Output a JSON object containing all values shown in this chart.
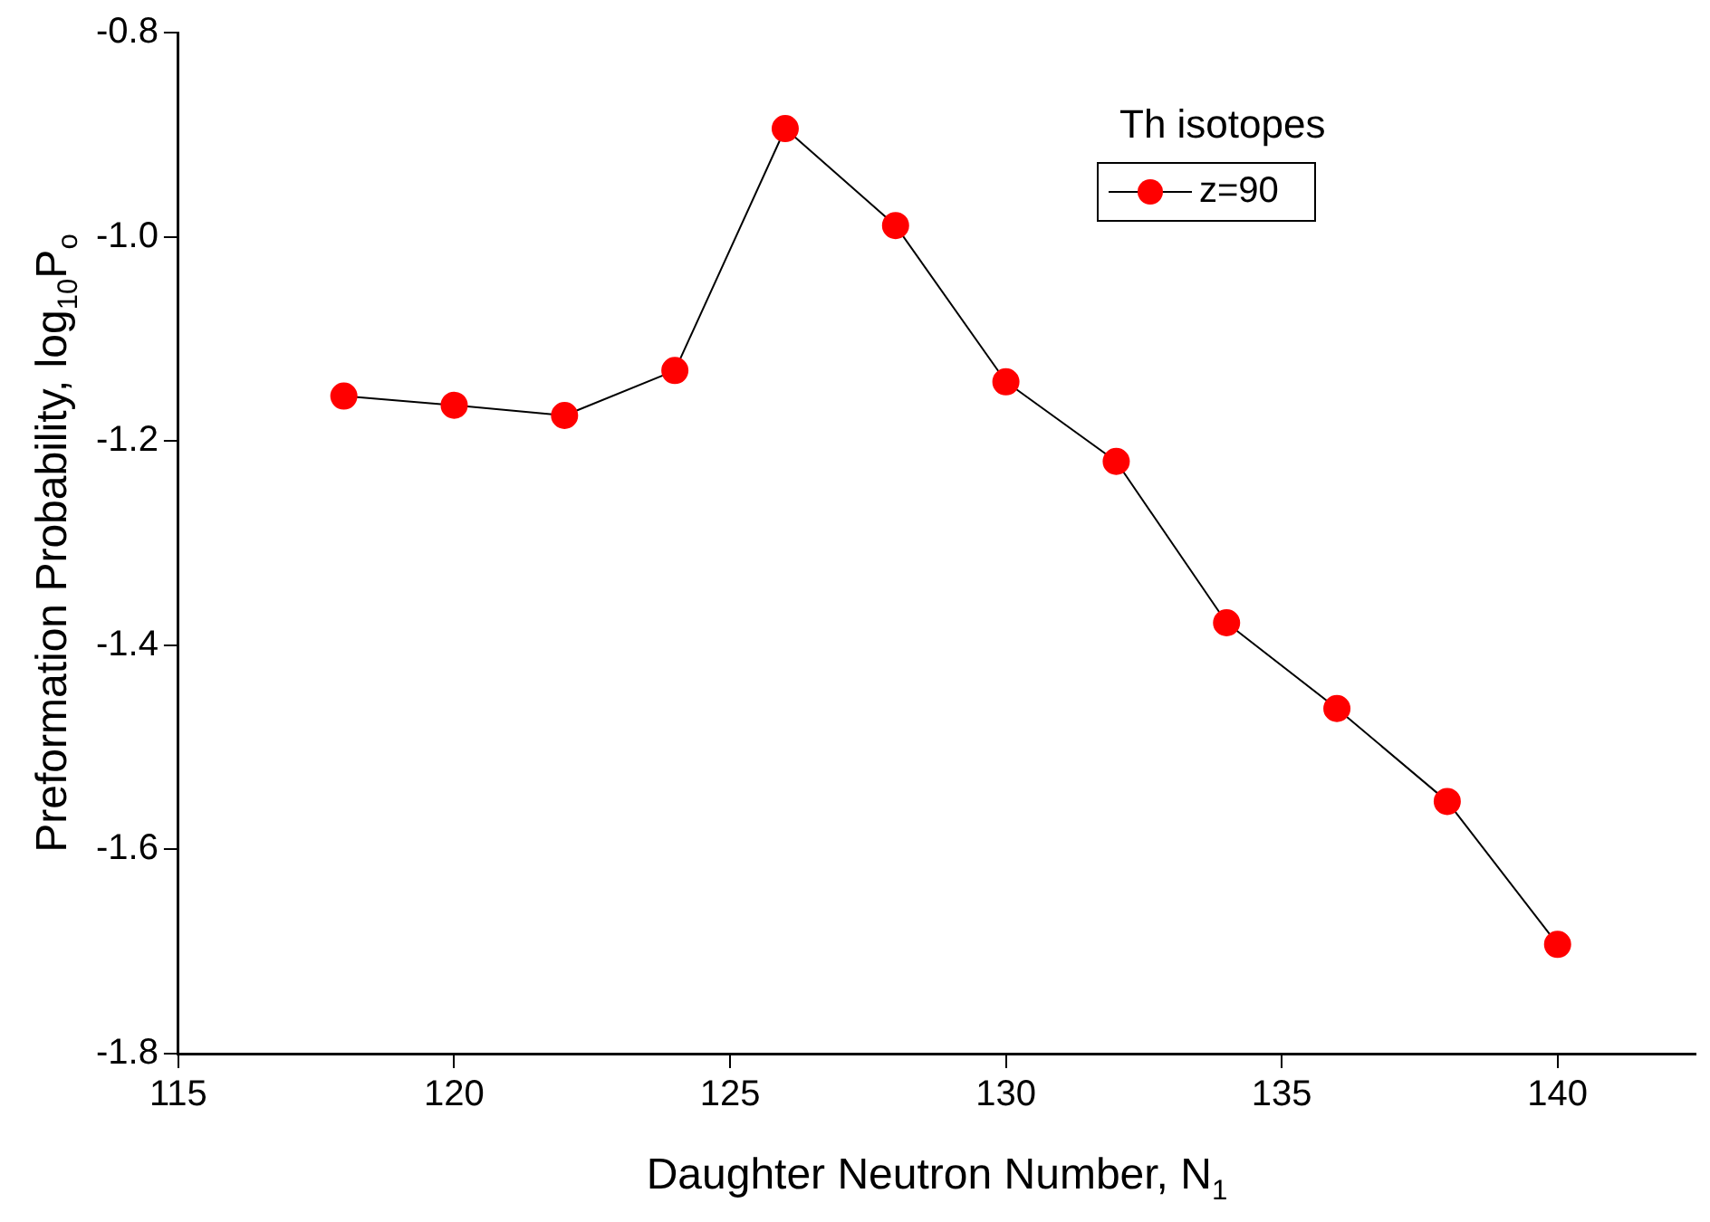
{
  "chart_data": {
    "type": "line",
    "xlabel": "Daughter Neutron Number, N$_{1}$",
    "ylabel": "Preformation Probability, log$_{10}$P$_{o}$",
    "legend_title": "Th isotopes",
    "x": [
      118,
      120,
      122,
      124,
      126,
      128,
      130,
      132,
      134,
      136,
      138,
      140
    ],
    "series": [
      {
        "name": "z=90",
        "color": "#ff0000",
        "values": [
          -1.156,
          -1.165,
          -1.175,
          -1.131,
          -0.894,
          -0.989,
          -1.142,
          -1.22,
          -1.378,
          -1.462,
          -1.553,
          -1.693
        ]
      }
    ],
    "xlim": [
      115,
      142.5
    ],
    "xticks": [
      115,
      120,
      125,
      130,
      135,
      140
    ],
    "ylim": [
      -1.8,
      -0.8
    ],
    "yticks": [
      -1.8,
      -1.6,
      -1.4,
      -1.2,
      {
        "value": -1,
        "label": "-1.0"
      },
      -0.8
    ],
    "grid": false,
    "legend": "top right",
    "marker": "circle",
    "line_style": "solid"
  }
}
